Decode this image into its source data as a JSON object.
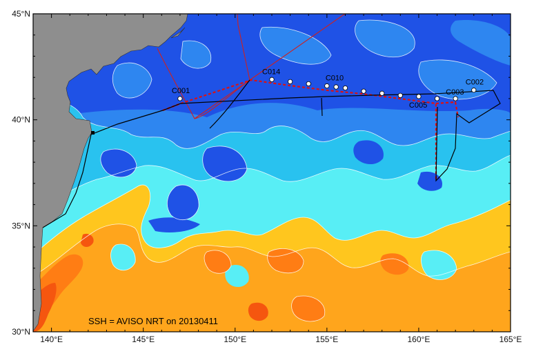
{
  "caption": "SSH = AVISO NRT on 20130411",
  "colors": {
    "deep_blue": "#1f52e6",
    "mid_blue": "#2e86f0",
    "light_blue": "#29c2ef",
    "cyan": "#58eef5",
    "yellow": "#ffc61e",
    "orange_light": "#ffa51c",
    "orange": "#ff7d14",
    "red_orange": "#f5560f",
    "land": "#8e8e8e",
    "cruise_track": "#000000",
    "ship_track": "#cc2222",
    "station_dot": "#ffffff"
  },
  "axes": {
    "lon_min": 139,
    "lon_max": 165,
    "lat_min": 30,
    "lat_max": 45,
    "lon_ticks": [
      "140°E",
      "145°E",
      "150°E",
      "155°E",
      "160°E",
      "165°E"
    ],
    "lat_ticks": [
      "30°N",
      "35°N",
      "40°N",
      "45°N"
    ]
  },
  "stations": [
    {
      "label": "C001",
      "lon": 147.0,
      "lat": 41.0
    },
    {
      "label": "C002",
      "lon": 163.0,
      "lat": 41.4
    },
    {
      "label": "C003",
      "lon": 162.0,
      "lat": 41.0
    },
    {
      "label": "C005",
      "lon": 160.0,
      "lat": 41.1
    },
    {
      "label": "C010",
      "lon": 155.0,
      "lat": 41.6
    },
    {
      "label": "C014",
      "lon": 152.0,
      "lat": 41.9
    }
  ],
  "unlabeled_stations": [
    {
      "lon": 153.0,
      "lat": 41.8
    },
    {
      "lon": 154.0,
      "lat": 41.7
    },
    {
      "lon": 155.5,
      "lat": 41.55
    },
    {
      "lon": 156.0,
      "lat": 41.5
    },
    {
      "lon": 157.0,
      "lat": 41.35
    },
    {
      "lon": 158.0,
      "lat": 41.25
    },
    {
      "lon": 159.0,
      "lat": 41.15
    },
    {
      "lon": 161.0,
      "lat": 41.0
    }
  ]
}
